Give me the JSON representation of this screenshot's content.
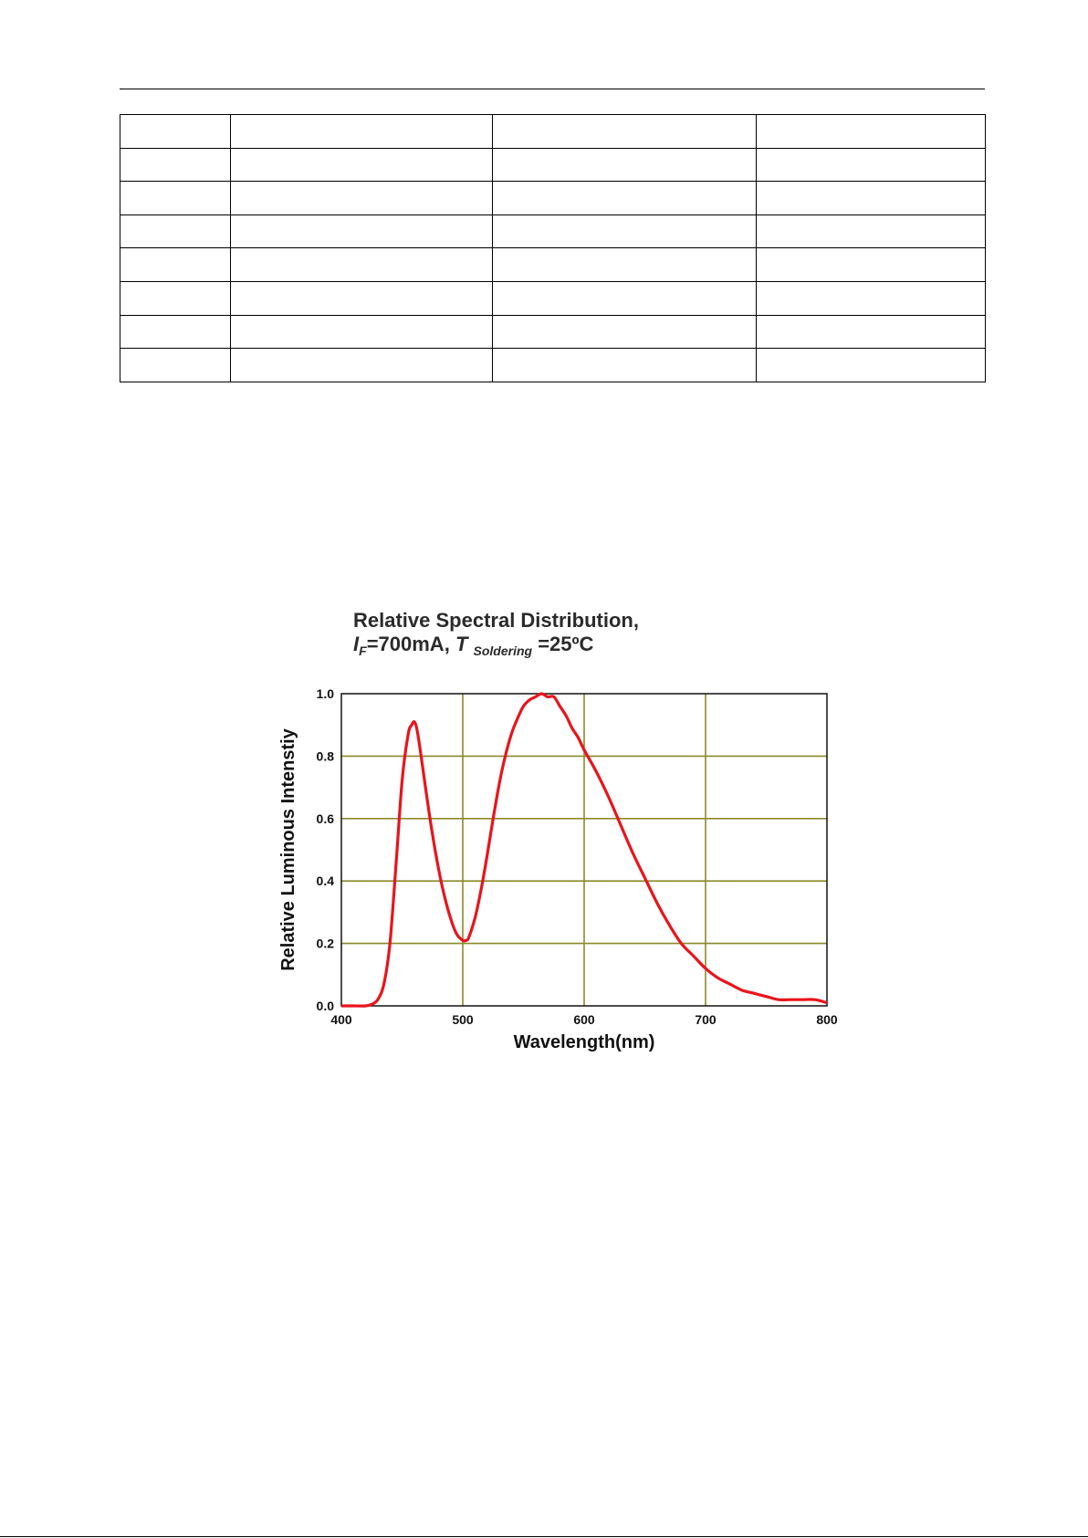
{
  "chart_data": {
    "type": "line",
    "title_line1": "Relative Spectral Distribution,",
    "title_line2": {
      "i_symbol": "I",
      "i_sub": "F",
      "current": "=700mA,",
      "t_symbol": "T",
      "t_sub": "Soldering",
      "temp": "=25ºC"
    },
    "xlabel": "Wavelength(nm)",
    "ylabel": "Relative Luminous Intenstiy",
    "xlim": [
      400,
      800
    ],
    "ylim": [
      0,
      1.0
    ],
    "x_ticks": [
      400,
      500,
      600,
      700,
      800
    ],
    "y_ticks": [
      "0.0",
      "0.2",
      "0.4",
      "0.6",
      "0.8",
      "1.0"
    ],
    "grid": true,
    "grid_color": "#8a8a2a",
    "line_color": "#e8141c",
    "series": [
      {
        "x": [
          400,
          410,
          420,
          425,
          430,
          435,
          440,
          445,
          450,
          455,
          458,
          460,
          462,
          465,
          470,
          475,
          480,
          485,
          490,
          495,
          500,
          503,
          505,
          510,
          515,
          520,
          525,
          530,
          535,
          540,
          545,
          550,
          555,
          560,
          565,
          570,
          575,
          580,
          585,
          590,
          595,
          600,
          610,
          620,
          630,
          640,
          650,
          660,
          670,
          680,
          690,
          700,
          710,
          720,
          730,
          740,
          750,
          760,
          770,
          780,
          790,
          800
        ],
        "y": [
          0.0,
          0.0,
          0.0,
          0.005,
          0.02,
          0.07,
          0.2,
          0.45,
          0.72,
          0.87,
          0.9,
          0.91,
          0.89,
          0.82,
          0.68,
          0.55,
          0.44,
          0.35,
          0.28,
          0.23,
          0.21,
          0.21,
          0.22,
          0.28,
          0.37,
          0.48,
          0.6,
          0.71,
          0.8,
          0.87,
          0.92,
          0.96,
          0.98,
          0.99,
          1.0,
          0.99,
          0.99,
          0.96,
          0.93,
          0.89,
          0.86,
          0.82,
          0.75,
          0.67,
          0.58,
          0.49,
          0.41,
          0.33,
          0.26,
          0.2,
          0.16,
          0.12,
          0.09,
          0.07,
          0.05,
          0.04,
          0.03,
          0.02,
          0.02,
          0.02,
          0.02,
          0.01
        ]
      }
    ]
  }
}
